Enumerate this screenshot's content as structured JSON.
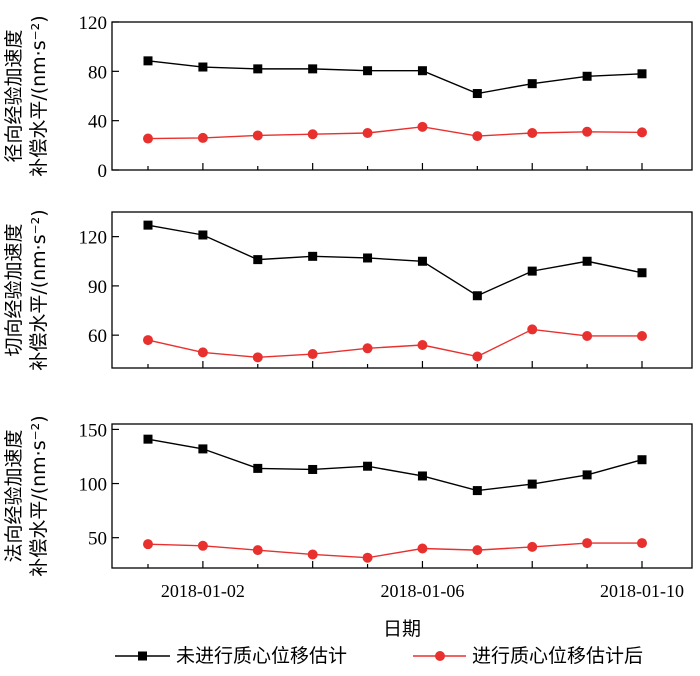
{
  "chart_data": {
    "type": "line",
    "x": [
      "2018-01-01",
      "2018-01-02",
      "2018-01-03",
      "2018-01-04",
      "2018-01-05",
      "2018-01-06",
      "2018-01-07",
      "2018-01-08",
      "2018-01-09",
      "2018-01-10"
    ],
    "x_tick_labels": [
      "2018-01-02",
      "2018-01-06",
      "2018-01-10"
    ],
    "xlabel": "日期",
    "series_names": [
      "未进行质心位移估计",
      "进行质心位移估计后"
    ],
    "colors": {
      "before": "#000000",
      "after": "#e8312f"
    },
    "panels": [
      {
        "ylabel_line1": "径向经验加速度",
        "ylabel_line2": "补偿水平/(nm·s⁻²)",
        "ylim": [
          0,
          120
        ],
        "yticks": [
          0,
          40,
          80,
          120
        ],
        "series": [
          {
            "name": "未进行质心位移估计",
            "values": [
              88.5,
              83.5,
              82,
              82,
              80.5,
              80.5,
              62,
              70,
              76,
              78
            ]
          },
          {
            "name": "进行质心位移估计后",
            "values": [
              25.5,
              26,
              28,
              29,
              30,
              35,
              27.5,
              30,
              31,
              30.5
            ]
          }
        ]
      },
      {
        "ylabel_line1": "切向经验加速度",
        "ylabel_line2": "补偿水平/(nm·s⁻²)",
        "ylim": [
          40,
          135
        ],
        "yticks": [
          60,
          90,
          120
        ],
        "series": [
          {
            "name": "未进行质心位移估计",
            "values": [
              127,
              121,
              106,
              108,
              107,
              105,
              84,
              99,
              105,
              98
            ]
          },
          {
            "name": "进行质心位移估计后",
            "values": [
              57,
              49.5,
              46.5,
              48.5,
              52,
              54,
              47,
              63.5,
              59.5,
              59.5
            ]
          }
        ]
      },
      {
        "ylabel_line1": "法向经验加速度",
        "ylabel_line2": "补偿水平/(nm·s⁻²)",
        "ylim": [
          22,
          155
        ],
        "yticks": [
          50,
          100,
          150
        ],
        "series": [
          {
            "name": "未进行质心位移估计",
            "values": [
              141,
              132,
              114,
              113,
              116,
              107,
              93.5,
              99.5,
              108,
              122
            ]
          },
          {
            "name": "进行质心位移估计后",
            "values": [
              44,
              42.5,
              38.5,
              34.5,
              31.5,
              40,
              38.5,
              41.5,
              45,
              45
            ]
          }
        ]
      }
    ]
  }
}
